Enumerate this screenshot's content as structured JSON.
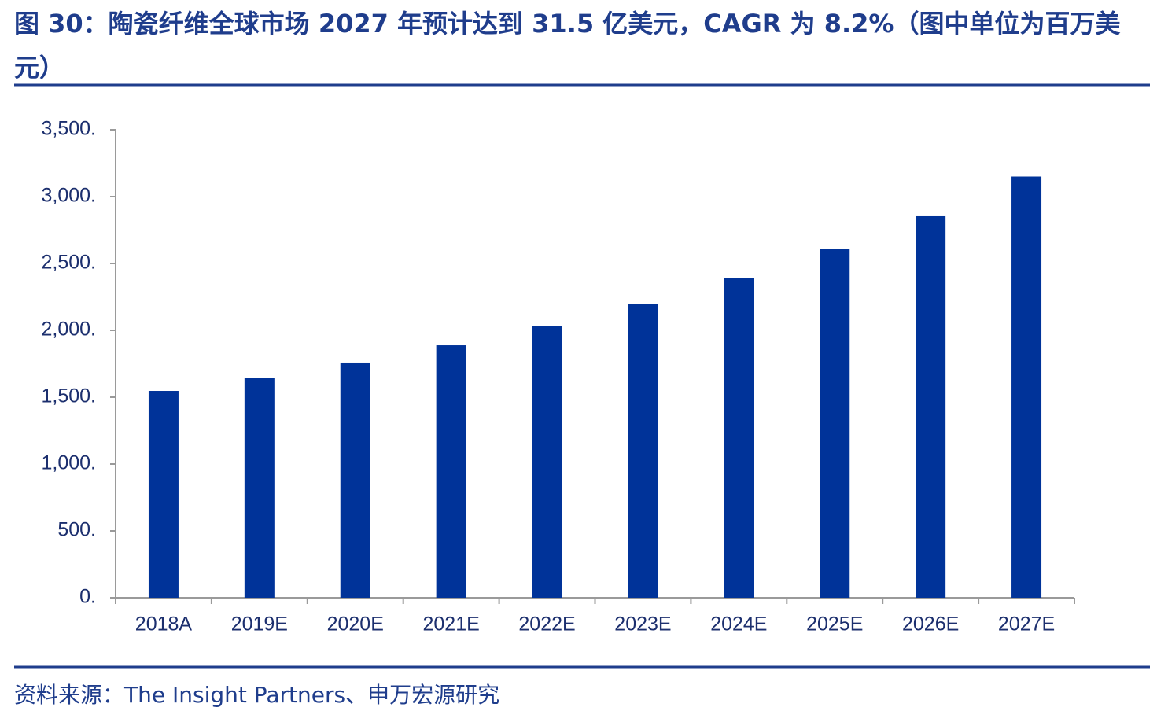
{
  "chart_data": {
    "type": "bar",
    "title": "图 30：陶瓷纤维全球市场 2027 年预计达到 31.5 亿美元，CAGR 为 8.2%（图中单位为百万美元）",
    "source": "资料来源：The Insight Partners、申万宏源研究",
    "categories": [
      "2018A",
      "2019E",
      "2020E",
      "2021E",
      "2022E",
      "2023E",
      "2024E",
      "2025E",
      "2026E",
      "2027E"
    ],
    "values": [
      1547,
      1647,
      1759,
      1888,
      2035,
      2200,
      2394,
      2606,
      2859,
      3150
    ],
    "color": "#003399",
    "ylim": [
      0,
      3500
    ],
    "yticks": [
      {
        "value": 0,
        "label": "0."
      },
      {
        "value": 500,
        "label": "500."
      },
      {
        "value": 1000,
        "label": "1,000."
      },
      {
        "value": 1500,
        "label": "1,500."
      },
      {
        "value": 2000,
        "label": "2,000."
      },
      {
        "value": 2500,
        "label": "2,500."
      },
      {
        "value": 3000,
        "label": "3,000."
      },
      {
        "value": 3500,
        "label": "3,500."
      }
    ],
    "grid": false
  }
}
